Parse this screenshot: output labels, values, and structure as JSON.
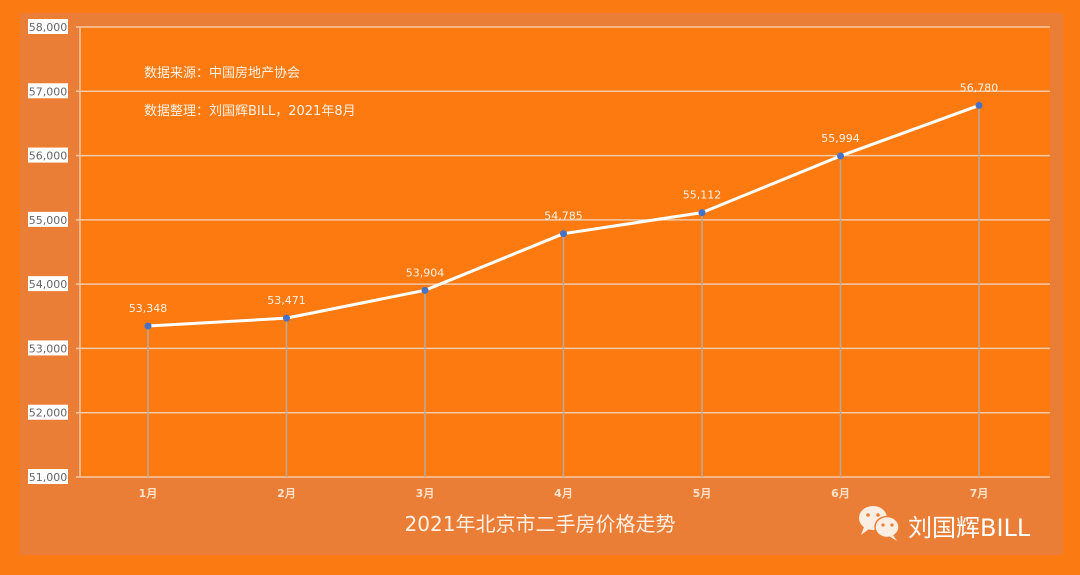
{
  "chart_data": {
    "type": "line",
    "title": "2021年北京市二手房价格走势",
    "categories": [
      "1月",
      "2月",
      "3月",
      "4月",
      "5月",
      "6月",
      "7月"
    ],
    "values": [
      53348,
      53471,
      53904,
      54785,
      55112,
      55994,
      56780
    ],
    "value_labels": [
      "53,348",
      "53,471",
      "53,904",
      "54,785",
      "55,112",
      "55,994",
      "56,780"
    ],
    "ylim": [
      51000,
      58000
    ],
    "yticks": [
      "51,000",
      "52,000",
      "53,000",
      "54,000",
      "55,000",
      "56,000",
      "57,000",
      "58,000"
    ],
    "grid": true,
    "annotations": [
      "数据来源：中国房地产协会",
      "数据整理：刘国辉BILL，2021年8月"
    ],
    "colors": {
      "background": "#FC7A12",
      "panel": "#EB7E36",
      "plot": "#FC7A10",
      "line": "#FFFFFF",
      "marker": "#4472C4"
    }
  },
  "watermark": {
    "text": "刘国辉BILL",
    "icon": "wechat-icon"
  }
}
